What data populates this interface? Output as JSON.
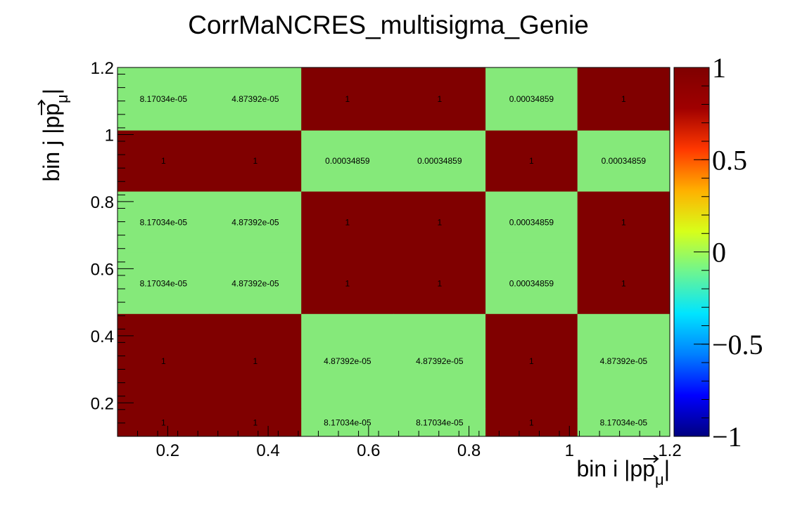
{
  "chart_data": {
    "type": "heatmap",
    "title": "CorrMaNCRES_multisigma_Genie",
    "xlabel": "bin i |p",
    "ylabel": "bin j |p",
    "label_arrow_symbol": "p",
    "label_subscript": "μ",
    "label_close": "|",
    "x_edges": [
      0.1,
      0.283,
      0.466,
      0.65,
      0.833,
      1.016,
      1.2
    ],
    "y_edges": [
      0.1,
      0.1825,
      0.465,
      0.647,
      0.83,
      1.012,
      1.2
    ],
    "xlim": [
      0.1,
      1.2
    ],
    "ylim": [
      0.1,
      1.2
    ],
    "x_ticks": [
      0.2,
      0.4,
      0.6,
      0.8,
      1,
      1.2
    ],
    "x_tick_labels": [
      "0.2",
      "0.4",
      "0.6",
      "0.8",
      "1",
      "1.2"
    ],
    "y_ticks": [
      0.2,
      0.4,
      0.6,
      0.8,
      1,
      1.2
    ],
    "y_tick_labels": [
      "0.2",
      "0.4",
      "0.6",
      "0.8",
      "1",
      "1.2"
    ],
    "zlim": [
      -1,
      1
    ],
    "z_ticks": [
      1,
      0.5,
      0,
      -0.5,
      -1
    ],
    "z_tick_labels": [
      "1",
      "0.5",
      "0",
      "−0.5",
      "−1"
    ],
    "colors": {
      "high": "#800000",
      "near_zero": "#85e97a",
      "colorbar_stops": [
        "#00007f",
        "#0000ff",
        "#0080ff",
        "#00e5ff",
        "#6cf592",
        "#d7ff1a",
        "#ffb000",
        "#ff3800",
        "#a00000",
        "#7f0000"
      ]
    },
    "values": [
      [
        "8.17034e-05",
        "4.87392e-05",
        "1",
        "1",
        "0.00034859",
        "1"
      ],
      [
        "1",
        "1",
        "0.00034859",
        "0.00034859",
        "1",
        "0.00034859"
      ],
      [
        "8.17034e-05",
        "4.87392e-05",
        "1",
        "1",
        "0.00034859",
        "1"
      ],
      [
        "8.17034e-05",
        "4.87392e-05",
        "1",
        "1",
        "0.00034859",
        "1"
      ],
      [
        "1",
        "1",
        "4.87392e-05",
        "4.87392e-05",
        "1",
        "4.87392e-05"
      ],
      [
        "1",
        "1",
        "8.17034e-05",
        "8.17034e-05",
        "1",
        "8.17034e-05"
      ]
    ]
  }
}
